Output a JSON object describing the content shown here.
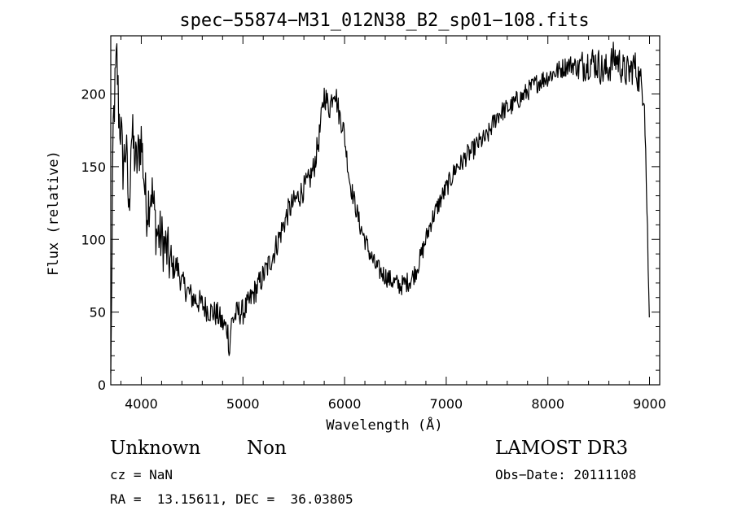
{
  "chart_data": {
    "type": "line",
    "title": "spec−55874−M31_012N38_B2_sp01−108.fits",
    "xlabel": "Wavelength (Å)",
    "ylabel": "Flux (relative)",
    "xlim": [
      3700,
      9100
    ],
    "ylim": [
      0,
      240
    ],
    "x_ticks": [
      4000,
      5000,
      6000,
      7000,
      8000,
      9000
    ],
    "y_ticks": [
      0,
      50,
      100,
      150,
      200
    ],
    "grid": false,
    "legend": "none",
    "line_color": "#000000",
    "series": [
      {
        "x": [
          3700,
          3710,
          3720,
          3740,
          3760,
          3780,
          3800,
          3820,
          3850,
          3880,
          3900,
          3950,
          4000,
          4050,
          4100,
          4150,
          4200,
          4250,
          4300,
          4350,
          4400,
          4450,
          4500,
          4550,
          4600,
          4650,
          4700,
          4750,
          4800,
          4850,
          4870,
          4880,
          4900,
          4950,
          5000,
          5050,
          5100,
          5150,
          5200,
          5250,
          5300,
          5350,
          5400,
          5450,
          5500,
          5550,
          5600,
          5650,
          5700,
          5750,
          5800,
          5850,
          5900,
          5950,
          5980,
          6000,
          6050,
          6100,
          6150,
          6200,
          6250,
          6300,
          6350,
          6400,
          6450,
          6500,
          6550,
          6600,
          6650,
          6700,
          6750,
          6800,
          6850,
          6900,
          6950,
          7000,
          7050,
          7100,
          7150,
          7200,
          7250,
          7300,
          7350,
          7400,
          7450,
          7500,
          7550,
          7600,
          7650,
          7700,
          7750,
          7800,
          7850,
          7900,
          7950,
          8000,
          8050,
          8100,
          8150,
          8200,
          8250,
          8300,
          8350,
          8400,
          8450,
          8500,
          8550,
          8600,
          8650,
          8700,
          8750,
          8800,
          8850,
          8900,
          8950,
          9000
        ],
        "y": [
          8,
          65,
          170,
          200,
          225,
          185,
          175,
          150,
          165,
          115,
          175,
          150,
          170,
          120,
          135,
          105,
          100,
          92,
          80,
          82,
          70,
          65,
          60,
          58,
          55,
          52,
          50,
          48,
          42,
          38,
          22,
          40,
          45,
          50,
          50,
          55,
          62,
          68,
          75,
          82,
          90,
          100,
          110,
          120,
          125,
          130,
          135,
          140,
          150,
          170,
          200,
          190,
          205,
          185,
          180,
          170,
          140,
          125,
          110,
          100,
          90,
          82,
          78,
          75,
          72,
          70,
          68,
          70,
          72,
          78,
          88,
          100,
          112,
          120,
          128,
          135,
          142,
          150,
          152,
          158,
          160,
          165,
          168,
          170,
          178,
          185,
          188,
          190,
          192,
          196,
          198,
          202,
          205,
          208,
          210,
          212,
          214,
          216,
          218,
          220,
          220,
          218,
          220,
          222,
          222,
          220,
          215,
          218,
          225,
          222,
          215,
          215,
          220,
          210,
          200,
          40
        ]
      }
    ]
  },
  "info": {
    "object_class": "Unknown",
    "subclass": "Non",
    "survey": "LAMOST DR3",
    "redshift": "cz = NaN",
    "obs_date": "Obs−Date: 20111108",
    "coords": "RA =  13.15611, DEC =  36.03805"
  }
}
